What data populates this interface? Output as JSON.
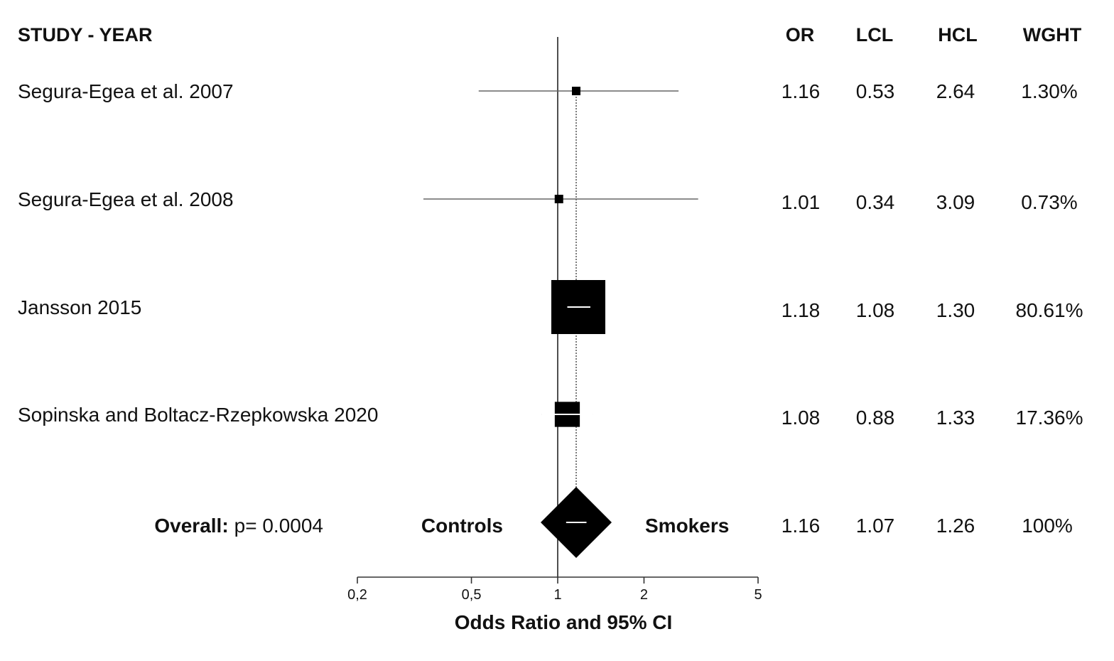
{
  "table": {
    "headers": {
      "study": "STUDY - YEAR",
      "or": "OR",
      "lcl": "LCL",
      "hcl": "HCL",
      "wght": "WGHT"
    },
    "overall_label": "Overall:",
    "overall_p": "p= 0.0004",
    "left_side_label": "Controls",
    "right_side_label": "Smokers"
  },
  "chart_data": {
    "type": "forest",
    "xlabel": "Odds Ratio and 95% CI",
    "xscale": "log",
    "xlim": [
      0.2,
      5
    ],
    "xticks": [
      0.2,
      0.5,
      1,
      2,
      5
    ],
    "xtick_labels": [
      "0,2",
      "0,5",
      "1",
      "2",
      "5"
    ],
    "reference_line": 1,
    "studies": [
      {
        "name": "Segura-Egea et al. 2007",
        "or": 1.16,
        "lcl": 0.53,
        "hcl": 2.64,
        "or_text": "1.16",
        "lcl_text": "0.53",
        "hcl_text": "2.64",
        "weight": 1.3,
        "weight_text": "1.30%"
      },
      {
        "name": "Segura-Egea et al. 2008",
        "or": 1.01,
        "lcl": 0.34,
        "hcl": 3.09,
        "or_text": "1.01",
        "lcl_text": "0.34",
        "hcl_text": "3.09",
        "weight": 0.73,
        "weight_text": "0.73%"
      },
      {
        "name": "Jansson 2015",
        "or": 1.18,
        "lcl": 1.08,
        "hcl": 1.3,
        "or_text": "1.18",
        "lcl_text": "1.08",
        "hcl_text": "1.30",
        "weight": 80.61,
        "weight_text": "80.61%"
      },
      {
        "name": "Sopinska and Boltacz-Rzepkowska 2020",
        "or": 1.08,
        "lcl": 0.88,
        "hcl": 1.33,
        "or_text": "1.08",
        "lcl_text": "0.88",
        "hcl_text": "1.33",
        "weight": 17.36,
        "weight_text": "17.36%"
      }
    ],
    "overall": {
      "or": 1.16,
      "lcl": 1.07,
      "hcl": 1.26,
      "or_text": "1.16",
      "lcl_text": "1.07",
      "hcl_text": "1.26",
      "weight_text": "100%"
    }
  }
}
